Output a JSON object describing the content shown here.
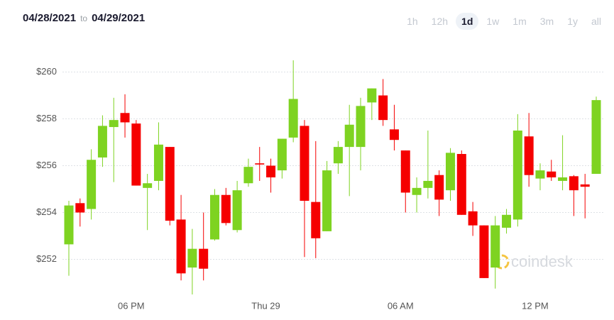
{
  "header": {
    "from": "04/28/2021",
    "separator": "to",
    "to": "04/29/2021"
  },
  "range_buttons": [
    "1h",
    "12h",
    "1d",
    "1w",
    "1m",
    "3m",
    "1y",
    "all"
  ],
  "selected_range": "1d",
  "watermark": "coindesk",
  "chart_data": {
    "type": "candlestick",
    "categories": [
      null,
      null,
      null,
      null,
      null,
      null,
      "06 PM",
      null,
      null,
      null,
      null,
      null,
      null,
      null,
      null,
      null,
      null,
      null,
      "Thu 29",
      null,
      null,
      null,
      null,
      null,
      null,
      null,
      null,
      null,
      null,
      null,
      "06 AM",
      null,
      null,
      null,
      null,
      null,
      null,
      null,
      null,
      null,
      null,
      null,
      "12 PM",
      null,
      null,
      null,
      null,
      null
    ],
    "open": [
      252.64,
      254.4,
      254.15,
      256.35,
      257.65,
      258.25,
      257.8,
      255.05,
      255.35,
      256.8,
      253.7,
      251.65,
      252.45,
      252.85,
      254.75,
      253.25,
      255.25,
      256.1,
      256.0,
      255.8,
      257.2,
      257.7,
      254.45,
      253.2,
      256.1,
      256.8,
      256.8,
      258.7,
      259.0,
      257.55,
      256.65,
      254.75,
      255.05,
      255.6,
      254.95,
      256.5,
      254.05,
      253.45,
      251.65,
      253.35,
      253.7,
      257.25,
      255.45,
      255.75,
      255.35,
      255.55,
      255.2,
      255.65
    ],
    "high": [
      254.5,
      254.6,
      256.7,
      258.15,
      258.9,
      259.05,
      257.95,
      255.65,
      257.85,
      256.8,
      254.75,
      253.3,
      254.0,
      255.0,
      255.05,
      255.35,
      256.3,
      256.8,
      256.3,
      257.15,
      260.5,
      257.95,
      257.05,
      256.2,
      257.05,
      258.6,
      258.9,
      259.3,
      259.7,
      258.6,
      256.65,
      255.5,
      257.5,
      255.8,
      256.75,
      256.65,
      254.45,
      253.45,
      253.85,
      254.15,
      258.2,
      258.25,
      256.1,
      256.25,
      257.3,
      255.6,
      255.65,
      258.95
    ],
    "low": [
      251.3,
      253.4,
      253.7,
      255.95,
      255.3,
      257.2,
      255.15,
      253.25,
      254.95,
      253.45,
      251.1,
      250.5,
      251.1,
      252.8,
      253.45,
      253.15,
      255.1,
      255.35,
      254.85,
      255.45,
      257.0,
      252.1,
      252.05,
      253.2,
      255.65,
      254.7,
      255.8,
      257.95,
      257.7,
      256.65,
      254.0,
      254.0,
      254.6,
      253.85,
      254.5,
      253.9,
      253.0,
      251.2,
      250.75,
      253.1,
      253.4,
      255.1,
      254.95,
      255.35,
      254.95,
      253.85,
      253.75,
      255.65
    ],
    "close": [
      254.3,
      254.0,
      256.25,
      257.7,
      257.95,
      257.85,
      255.15,
      255.25,
      256.9,
      253.65,
      251.4,
      252.45,
      251.6,
      254.75,
      253.55,
      254.95,
      255.95,
      256.05,
      255.5,
      257.15,
      258.85,
      254.5,
      252.9,
      255.8,
      256.8,
      257.75,
      258.55,
      259.3,
      257.95,
      257.1,
      254.85,
      255.05,
      255.35,
      254.55,
      256.55,
      253.9,
      253.45,
      251.2,
      253.45,
      253.9,
      257.5,
      255.6,
      255.8,
      255.5,
      255.5,
      254.95,
      255.1,
      258.8
    ],
    "up_color": "#7ed321",
    "down_color": "#f50000",
    "ylim": [
      250.5,
      260.5
    ],
    "yticks": [
      {
        "value": 252,
        "label": "$252"
      },
      {
        "value": 254,
        "label": "$254"
      },
      {
        "value": 256,
        "label": "$256"
      },
      {
        "value": 258,
        "label": "$258"
      },
      {
        "value": 260,
        "label": "$260"
      }
    ],
    "grid": true
  }
}
